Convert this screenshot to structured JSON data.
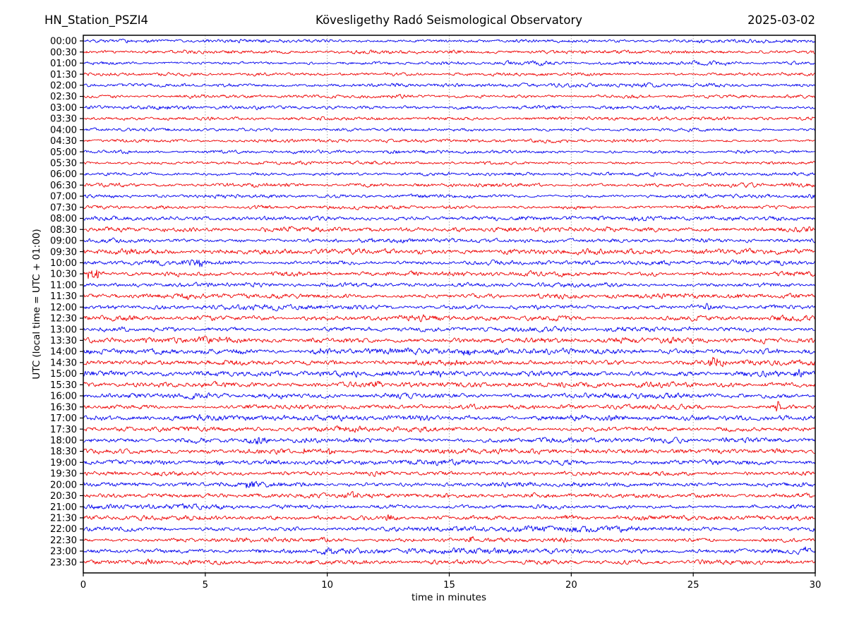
{
  "header": {
    "station": "HN_Station_PSZI4",
    "observatory": "Kövesligethy Radó Seismological Observatory",
    "date": "2025-03-02"
  },
  "chart_data": {
    "type": "line",
    "subtype": "helicorder-seismogram",
    "xlabel": "time in minutes",
    "ylabel": "UTC (local time = UTC + 01:00)",
    "x_range": [
      0,
      30
    ],
    "x_ticks": [
      0,
      5,
      10,
      15,
      20,
      25,
      30
    ],
    "grid_minutes": [
      5,
      10,
      15,
      20,
      25
    ],
    "grid_on": true,
    "minutes_per_row": 30,
    "trace_colors": {
      "blue": "#0000ee",
      "red": "#ee0000"
    },
    "grid_color": "#999999",
    "frame_color": "#000000",
    "background": "#ffffff",
    "rows": [
      {
        "label": "00:00",
        "color": "blue",
        "amp": 1.7,
        "events": []
      },
      {
        "label": "00:30",
        "color": "red",
        "amp": 1.7,
        "events": []
      },
      {
        "label": "01:00",
        "color": "blue",
        "amp": 1.8,
        "events": []
      },
      {
        "label": "01:30",
        "color": "red",
        "amp": 1.7,
        "events": []
      },
      {
        "label": "02:00",
        "color": "blue",
        "amp": 1.7,
        "events": []
      },
      {
        "label": "02:30",
        "color": "red",
        "amp": 1.7,
        "events": []
      },
      {
        "label": "03:00",
        "color": "blue",
        "amp": 1.8,
        "events": []
      },
      {
        "label": "03:30",
        "color": "red",
        "amp": 1.7,
        "events": []
      },
      {
        "label": "04:00",
        "color": "blue",
        "amp": 1.7,
        "events": []
      },
      {
        "label": "04:30",
        "color": "red",
        "amp": 1.7,
        "events": []
      },
      {
        "label": "05:00",
        "color": "blue",
        "amp": 1.7,
        "events": []
      },
      {
        "label": "05:30",
        "color": "red",
        "amp": 1.7,
        "events": []
      },
      {
        "label": "06:00",
        "color": "blue",
        "amp": 1.8,
        "events": []
      },
      {
        "label": "06:30",
        "color": "red",
        "amp": 1.8,
        "events": []
      },
      {
        "label": "07:00",
        "color": "blue",
        "amp": 1.9,
        "events": []
      },
      {
        "label": "07:30",
        "color": "red",
        "amp": 1.9,
        "events": []
      },
      {
        "label": "08:00",
        "color": "blue",
        "amp": 2.1,
        "events": [
          {
            "m": 22.5,
            "a": 4.0,
            "w": 0.3
          }
        ]
      },
      {
        "label": "08:30",
        "color": "red",
        "amp": 2.2,
        "events": []
      },
      {
        "label": "09:00",
        "color": "blue",
        "amp": 2.1,
        "events": [
          {
            "m": 11.8,
            "a": 4.5,
            "w": 0.25
          }
        ]
      },
      {
        "label": "09:30",
        "color": "red",
        "amp": 2.8,
        "events": []
      },
      {
        "label": "10:00",
        "color": "blue",
        "amp": 2.3,
        "events": [
          {
            "m": 4.8,
            "a": 4.5,
            "w": 0.35
          }
        ]
      },
      {
        "label": "10:30",
        "color": "red",
        "amp": 2.4,
        "events": [
          {
            "m": 0.45,
            "a": 6.5,
            "w": 0.55
          }
        ]
      },
      {
        "label": "11:00",
        "color": "blue",
        "amp": 2.3,
        "events": []
      },
      {
        "label": "11:30",
        "color": "red",
        "amp": 2.4,
        "events": [
          {
            "m": 4.3,
            "a": 4.5,
            "w": 0.3
          },
          {
            "m": 26.7,
            "a": 3.5,
            "w": 0.5
          }
        ]
      },
      {
        "label": "12:00",
        "color": "blue",
        "amp": 2.4,
        "events": [
          {
            "m": 25.5,
            "a": 3.5,
            "w": 0.4
          }
        ]
      },
      {
        "label": "12:30",
        "color": "red",
        "amp": 2.4,
        "events": []
      },
      {
        "label": "13:00",
        "color": "blue",
        "amp": 2.4,
        "events": [
          {
            "m": 21.7,
            "a": 3.5,
            "w": 0.8
          }
        ]
      },
      {
        "label": "13:30",
        "color": "red",
        "amp": 2.7,
        "events": [
          {
            "m": 5.3,
            "a": 3.5,
            "w": 1.0
          }
        ]
      },
      {
        "label": "14:00",
        "color": "blue",
        "amp": 2.9,
        "events": [
          {
            "m": 9.7,
            "a": 3.5,
            "w": 0.5
          },
          {
            "m": 15.8,
            "a": 3.5,
            "w": 0.5
          }
        ]
      },
      {
        "label": "14:30",
        "color": "red",
        "amp": 2.8,
        "events": [
          {
            "m": 25.9,
            "a": 5.5,
            "w": 0.45
          }
        ]
      },
      {
        "label": "15:00",
        "color": "blue",
        "amp": 2.7,
        "events": [
          {
            "m": 14.5,
            "a": 3.5,
            "w": 0.4
          },
          {
            "m": 29.3,
            "a": 4.5,
            "w": 0.35
          }
        ]
      },
      {
        "label": "15:30",
        "color": "red",
        "amp": 2.5,
        "events": [
          {
            "m": 12.0,
            "a": 5.5,
            "w": 0.35
          }
        ]
      },
      {
        "label": "16:00",
        "color": "blue",
        "amp": 2.5,
        "events": []
      },
      {
        "label": "16:30",
        "color": "red",
        "amp": 2.4,
        "events": [
          {
            "m": 28.5,
            "a": 7.5,
            "w": 0.22
          }
        ]
      },
      {
        "label": "17:00",
        "color": "blue",
        "amp": 2.7,
        "events": []
      },
      {
        "label": "17:30",
        "color": "red",
        "amp": 2.4,
        "events": []
      },
      {
        "label": "18:00",
        "color": "blue",
        "amp": 2.5,
        "events": [
          {
            "m": 7.2,
            "a": 4.5,
            "w": 0.5
          }
        ]
      },
      {
        "label": "18:30",
        "color": "red",
        "amp": 2.4,
        "events": [
          {
            "m": 9.0,
            "a": 5.5,
            "w": 0.18
          },
          {
            "m": 10.0,
            "a": 3.5,
            "w": 0.5
          }
        ]
      },
      {
        "label": "19:00",
        "color": "blue",
        "amp": 2.4,
        "events": [
          {
            "m": 5.6,
            "a": 4.5,
            "w": 0.25
          }
        ]
      },
      {
        "label": "19:30",
        "color": "red",
        "amp": 2.2,
        "events": []
      },
      {
        "label": "20:00",
        "color": "blue",
        "amp": 2.3,
        "events": [
          {
            "m": 6.8,
            "a": 3.5,
            "w": 0.4
          }
        ]
      },
      {
        "label": "20:30",
        "color": "red",
        "amp": 2.2,
        "events": [
          {
            "m": 11.0,
            "a": 5.0,
            "w": 0.45
          }
        ]
      },
      {
        "label": "21:00",
        "color": "blue",
        "amp": 2.3,
        "events": []
      },
      {
        "label": "21:30",
        "color": "red",
        "amp": 2.2,
        "events": [
          {
            "m": 12.6,
            "a": 4.0,
            "w": 0.5
          }
        ]
      },
      {
        "label": "22:00",
        "color": "blue",
        "amp": 2.4,
        "events": [
          {
            "m": 20.2,
            "a": 4.0,
            "w": 0.6
          }
        ]
      },
      {
        "label": "22:30",
        "color": "red",
        "amp": 2.2,
        "events": [
          {
            "m": 15.9,
            "a": 4.5,
            "w": 0.18
          },
          {
            "m": 19.8,
            "a": 3.5,
            "w": 0.3
          }
        ]
      },
      {
        "label": "23:00",
        "color": "blue",
        "amp": 2.4,
        "events": [
          {
            "m": 10.0,
            "a": 5.0,
            "w": 0.35
          },
          {
            "m": 29.6,
            "a": 3.5,
            "w": 0.3
          }
        ]
      },
      {
        "label": "23:30",
        "color": "red",
        "amp": 2.1,
        "events": [
          {
            "m": 2.8,
            "a": 3.5,
            "w": 0.5
          }
        ]
      }
    ]
  }
}
